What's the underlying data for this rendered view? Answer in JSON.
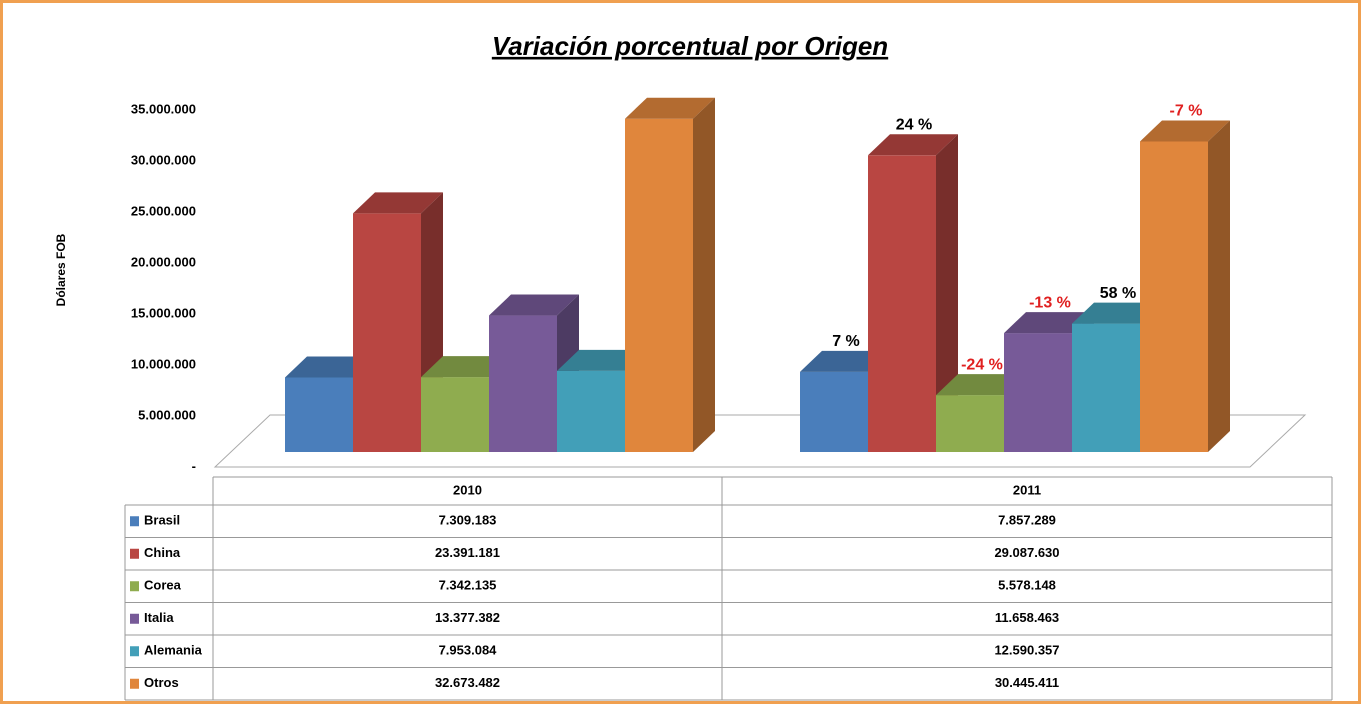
{
  "chart_data": {
    "type": "bar3d",
    "title": "Variación porcentual por Origen",
    "y_label": "Dólares FOB",
    "categories": [
      "2010",
      "2011"
    ],
    "ylim": [
      0,
      35000000
    ],
    "yticks": [
      {
        "value": 0,
        "label": "-"
      },
      {
        "value": 5000000,
        "label": "5.000.000"
      },
      {
        "value": 10000000,
        "label": "10.000.000"
      },
      {
        "value": 15000000,
        "label": "15.000.000"
      },
      {
        "value": 20000000,
        "label": "20.000.000"
      },
      {
        "value": 25000000,
        "label": "25.000.000"
      },
      {
        "value": 30000000,
        "label": "30.000.000"
      },
      {
        "value": 35000000,
        "label": "35.000.000"
      }
    ],
    "series": [
      {
        "name": "Brasil",
        "color": "#4a7ebb",
        "values": [
          7309183,
          7857289
        ],
        "value_labels": [
          "7.309.183",
          "7.857.289"
        ],
        "change_label": "7 %",
        "change_color": "#000000"
      },
      {
        "name": "China",
        "color": "#b94642",
        "values": [
          23391181,
          29087630
        ],
        "value_labels": [
          "23.391.181",
          "29.087.630"
        ],
        "change_label": "24 %",
        "change_color": "#000000"
      },
      {
        "name": "Corea",
        "color": "#8fac4f",
        "values": [
          7342135,
          5578148
        ],
        "value_labels": [
          "7.342.135",
          "5.578.148"
        ],
        "change_label": "-24 %",
        "change_color": "#e02020"
      },
      {
        "name": "Italia",
        "color": "#775a98",
        "values": [
          13377382,
          11658463
        ],
        "value_labels": [
          "13.377.382",
          "11.658.463"
        ],
        "change_label": "-13 %",
        "change_color": "#e02020"
      },
      {
        "name": "Alemania",
        "color": "#429fb8",
        "values": [
          7953084,
          12590357
        ],
        "value_labels": [
          "7.953.084",
          "12.590.357"
        ],
        "change_label": "58 %",
        "change_color": "#000000"
      },
      {
        "name": "Otros",
        "color": "#e0863c",
        "values": [
          32673482,
          30445411
        ],
        "value_labels": [
          "32.673.482",
          "30.445.411"
        ],
        "change_label": "-7 %",
        "change_color": "#e02020"
      }
    ]
  }
}
